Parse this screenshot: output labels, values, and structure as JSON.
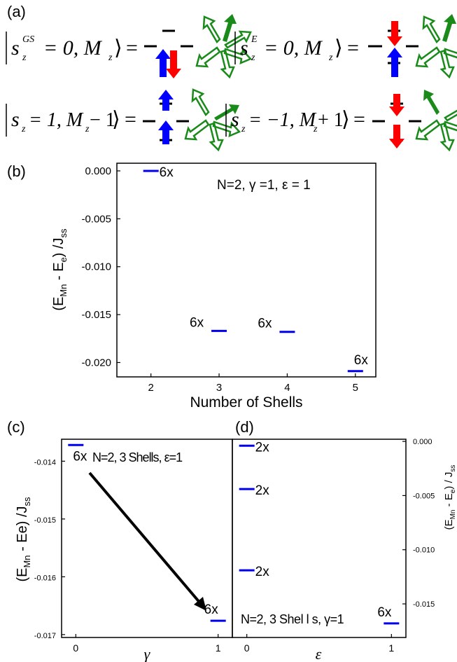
{
  "panel_a": {
    "label": "(a)",
    "states": [
      {
        "lhs_main": "s",
        "lhs_sup": "GS",
        "lhs_sub": "z",
        "lhs_tail": "= 0, M",
        "lhs_tail_sub": "z"
      },
      {
        "lhs_main": "s",
        "lhs_sup": "E",
        "lhs_sub": "z",
        "lhs_tail": "= 0, M",
        "lhs_tail_sub": "z"
      },
      {
        "lhs_main": "s",
        "lhs_sup": "",
        "lhs_sub": "z",
        "lhs_tail": "= 1, M",
        "lhs_tail_sub": "z",
        "lhs_end": " − 1"
      },
      {
        "lhs_main": "s",
        "lhs_sup": "",
        "lhs_sub": "z",
        "lhs_tail": "= −1, M",
        "lhs_tail_sub": "z",
        "lhs_end": " + 1"
      }
    ],
    "equals": "="
  },
  "colors": {
    "series": "#0000ee",
    "spin_up": "#0000ff",
    "spin_down": "#ff0000",
    "mn_spin": "#1a8a1a",
    "axis": "#000000"
  },
  "chart_data": [
    {
      "id": "b",
      "type": "scatter",
      "panel_label": "(b)",
      "ylabel_main": "(E",
      "ylabel_sub1": "Mn",
      "ylabel_mid": " - E",
      "ylabel_sub2": "e",
      "ylabel_end": ") /J",
      "ylabel_sub3": "ss",
      "xlabel": "Number of Shells",
      "annotation": "N=2, γ =1, ε = 1",
      "xlim": [
        1.5,
        5.3
      ],
      "ylim": [
        -0.0215,
        0.0008
      ],
      "xticks": [
        "2",
        "3",
        "4",
        "5"
      ],
      "yticks": [
        "0.000",
        "-0.005",
        "-0.010",
        "-0.015",
        "-0.020"
      ],
      "points": [
        {
          "x": 2,
          "y": 0.0,
          "label": "6x"
        },
        {
          "x": 3,
          "y": -0.0167,
          "label": "6x"
        },
        {
          "x": 4,
          "y": -0.0168,
          "label": "6x"
        },
        {
          "x": 5,
          "y": -0.0209,
          "label": "6x"
        }
      ]
    },
    {
      "id": "c",
      "type": "scatter",
      "panel_label": "(c)",
      "ylabel_main": "(E",
      "ylabel_sub1": "Mn",
      "ylabel_mid": " - Ee) /J",
      "ylabel_sub2": "ss",
      "xlabel": "γ",
      "annotation": "N=2, 3 Shells, ε=1",
      "xlim": [
        -0.1,
        1.1
      ],
      "ylim": [
        -0.01705,
        -0.01362
      ],
      "xticks": [
        "0",
        "1"
      ],
      "yticks": [
        "-0.014",
        "-0.015",
        "-0.016",
        "-0.017"
      ],
      "points": [
        {
          "x": 0,
          "y": -0.01372,
          "label": "6x"
        },
        {
          "x": 1,
          "y": -0.01676,
          "label": "6x"
        }
      ]
    },
    {
      "id": "d",
      "type": "scatter",
      "panel_label": "(d)",
      "ylabel_main": "(E",
      "ylabel_sub1": "Mn",
      "ylabel_mid": " - E",
      "ylabel_sub2": "e",
      "ylabel_end": ") / J",
      "ylabel_sub3": "ss",
      "xlabel": "ε",
      "annotation": "N=2, 3 Shel l s, γ=1",
      "xlim": [
        -0.1,
        1.1
      ],
      "ylim": [
        -0.0181,
        0.0002
      ],
      "xticks": [
        "0",
        "1"
      ],
      "yticks": [
        "0.000",
        "-0.005",
        "-0.010",
        "-0.015"
      ],
      "points": [
        {
          "x": 0,
          "y": -0.0004,
          "label": "2x"
        },
        {
          "x": 0,
          "y": -0.0044,
          "label": "2x"
        },
        {
          "x": 0,
          "y": -0.0119,
          "label": "2x"
        },
        {
          "x": 1,
          "y": -0.0168,
          "label": "6x"
        }
      ]
    }
  ]
}
